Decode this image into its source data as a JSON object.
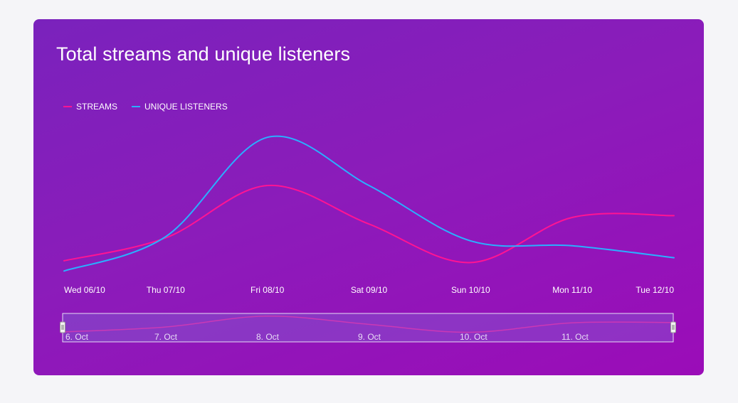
{
  "colors": {
    "streams": "#ff1493",
    "listeners": "#2ab0ff"
  },
  "chart_data": {
    "type": "line",
    "title": "Total streams and unique listeners",
    "categories": [
      "Wed 06/10",
      "Thu 07/10",
      "Fri 08/10",
      "Sat 09/10",
      "Sun 10/10",
      "Mon 11/10",
      "Tue 12/10"
    ],
    "series": [
      {
        "name": "STREAMS",
        "values": [
          0.95,
          1.33,
          2.2,
          1.56,
          0.92,
          1.67,
          1.7
        ]
      },
      {
        "name": "UNIQUE LISTENERS",
        "values": [
          0.78,
          1.35,
          3.0,
          2.2,
          1.28,
          1.2,
          1.0
        ]
      }
    ],
    "legend": "top-left",
    "grid": false,
    "navigator": {
      "labels": [
        "6. Oct",
        "7. Oct",
        "8. Oct",
        "9. Oct",
        "10. Oct",
        "11. Oct"
      ]
    }
  }
}
